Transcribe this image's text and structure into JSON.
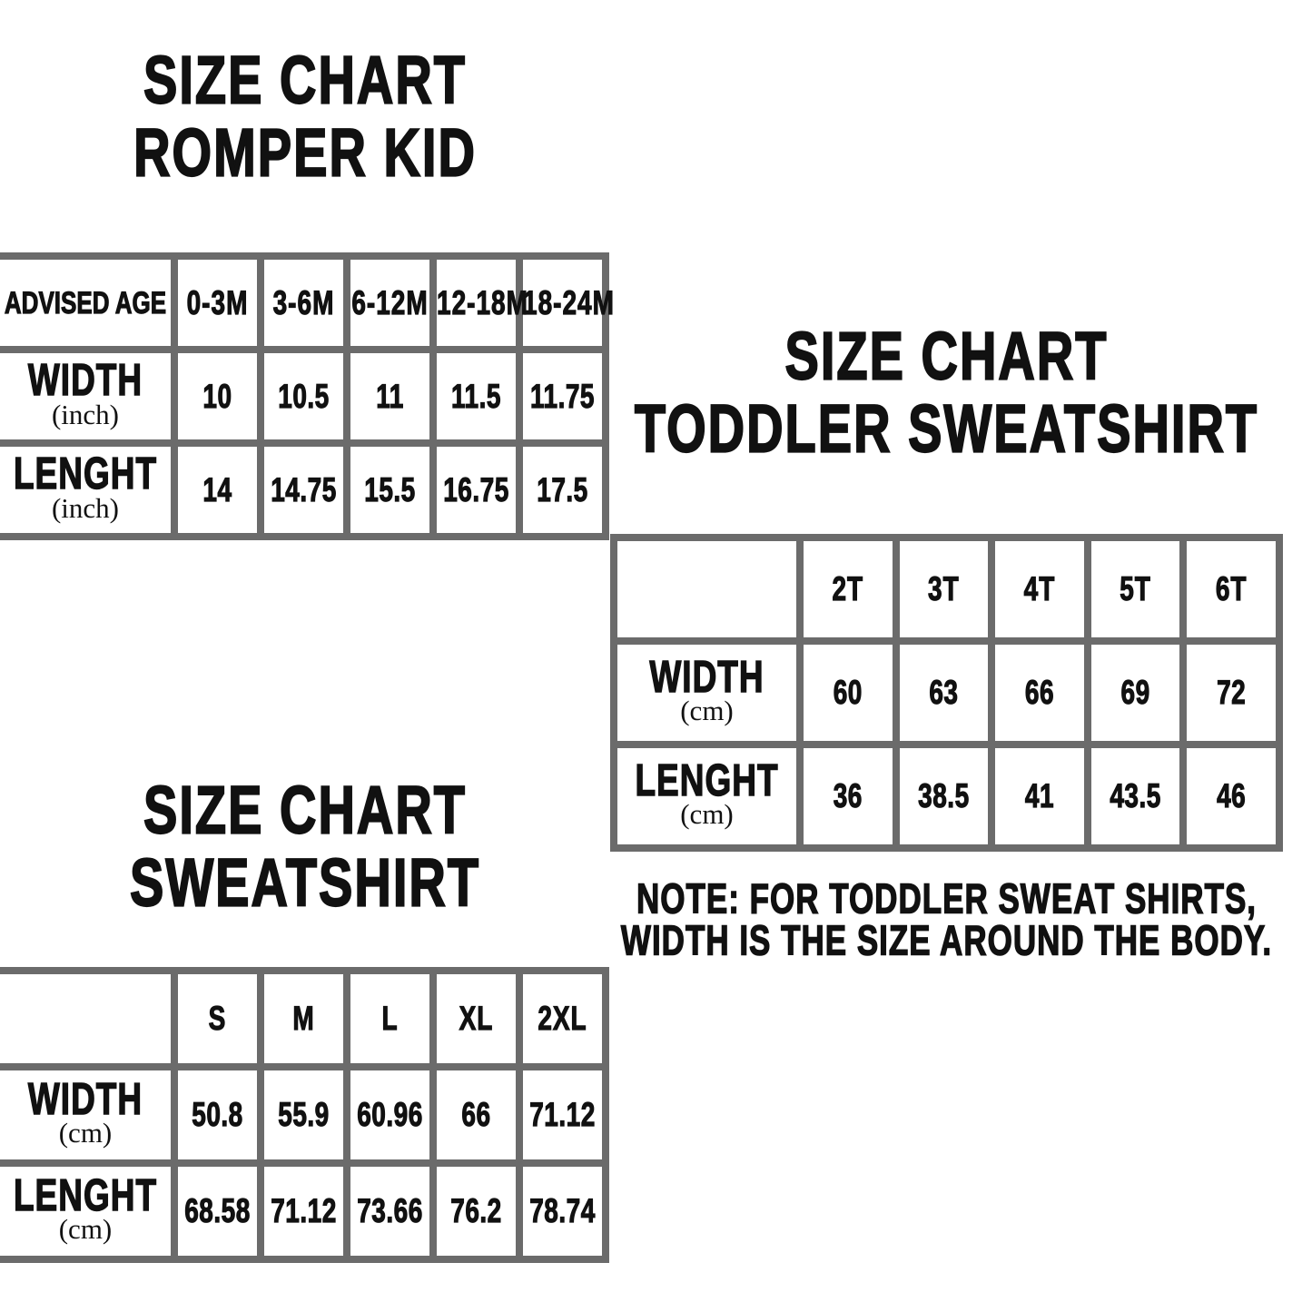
{
  "colors": {
    "background": "#ffffff",
    "text": "#111111",
    "table_border": "#6b6b6b"
  },
  "chart_data": [
    {
      "type": "table",
      "title_lines": [
        "SIZE CHART",
        "ROMPER KID"
      ],
      "header": [
        "ADVISED AGE",
        "0-3M",
        "3-6M",
        "6-12M",
        "12-18M",
        "18-24M"
      ],
      "rows": [
        {
          "label": "WIDTH",
          "unit": "(inch)",
          "values": [
            "10",
            "10.5",
            "11",
            "11.5",
            "11.75"
          ]
        },
        {
          "label": "LENGHT",
          "unit": "(inch)",
          "values": [
            "14",
            "14.75",
            "15.5",
            "16.75",
            "17.5"
          ]
        }
      ]
    },
    {
      "type": "table",
      "title_lines": [
        "SIZE CHART",
        "TODDLER SWEATSHIRT"
      ],
      "header": [
        "",
        "2T",
        "3T",
        "4T",
        "5T",
        "6T"
      ],
      "rows": [
        {
          "label": "WIDTH",
          "unit": "(cm)",
          "values": [
            "60",
            "63",
            "66",
            "69",
            "72"
          ]
        },
        {
          "label": "LENGHT",
          "unit": "(cm)",
          "values": [
            "36",
            "38.5",
            "41",
            "43.5",
            "46"
          ]
        }
      ],
      "note_lines": [
        "NOTE: FOR TODDLER SWEAT SHIRTS,",
        "WIDTH IS THE SIZE AROUND THE BODY."
      ]
    },
    {
      "type": "table",
      "title_lines": [
        "SIZE CHART",
        "SWEATSHIRT"
      ],
      "header": [
        "",
        "S",
        "M",
        "L",
        "XL",
        "2XL"
      ],
      "rows": [
        {
          "label": "WIDTH",
          "unit": "(cm)",
          "values": [
            "50.8",
            "55.9",
            "60.96",
            "66",
            "71.12"
          ]
        },
        {
          "label": "LENGHT",
          "unit": "(cm)",
          "values": [
            "68.58",
            "71.12",
            "73.66",
            "76.2",
            "78.74"
          ]
        }
      ]
    }
  ]
}
